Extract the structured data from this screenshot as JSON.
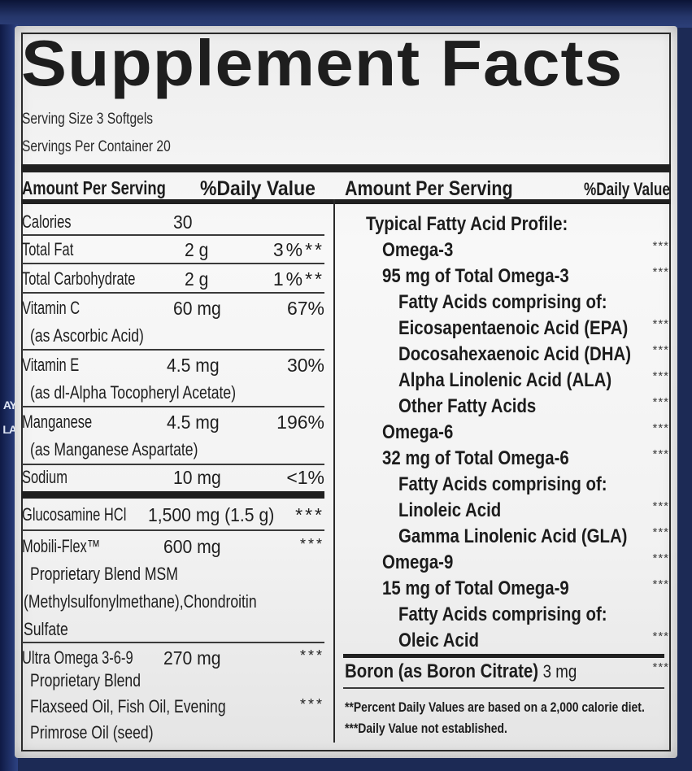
{
  "title": "Supplement Facts",
  "serving": {
    "size": "Serving Size 3 Softgels",
    "per_container": "Servings Per Container 20"
  },
  "left_header": {
    "amount": "Amount Per Serving",
    "dv": "%Daily Value"
  },
  "right_header": {
    "amount": "Amount Per Serving",
    "dv": "%Daily Value"
  },
  "left_rows": [
    {
      "name": "Calories",
      "amount": "30",
      "dv": ""
    },
    {
      "name": "Total Fat",
      "amount": "2 g",
      "dv": "3%**"
    },
    {
      "name": "Total Carbohydrate",
      "amount": "2 g",
      "dv": "1%**"
    },
    {
      "name": "Vitamin C",
      "amount": "60 mg",
      "dv": "67%",
      "sub": "(as Ascorbic Acid)"
    },
    {
      "name": "Vitamin E",
      "amount": "4.5 mg",
      "dv": "30%",
      "sub": "(as dl-Alpha Tocopheryl Acetate)"
    },
    {
      "name": "Manganese",
      "amount": "4.5 mg",
      "dv": "196%",
      "sub": "(as Manganese Aspartate)"
    },
    {
      "name": "Sodium",
      "amount": "10 mg",
      "dv": "<1%"
    }
  ],
  "blend_rows": {
    "glucosamine": {
      "name": "Glucosamine HCl",
      "amount": "1,500 mg (1.5 g)",
      "dv": "***"
    },
    "mobiliflex": {
      "name": "Mobili-Flex™",
      "amount": "600 mg",
      "dv": "***",
      "lines": [
        "Proprietary Blend MSM",
        "(Methylsulfonylmethane),Chondroitin",
        "Sulfate"
      ]
    },
    "ultra_omega": {
      "name": "Ultra Omega 3-6-9",
      "amount": "270 mg",
      "dv": "***",
      "line1": "Proprietary Blend",
      "line2": "Flaxseed Oil, Fish Oil, Evening",
      "line2_dv": "***",
      "line3": "Primrose Oil (seed)"
    }
  },
  "right_rows": [
    {
      "text": "Typical Fatty Acid Profile:",
      "dv": ""
    },
    {
      "text": "Omega-3",
      "dv": "***"
    },
    {
      "text": "95 mg of Total Omega-3",
      "dv": "***"
    },
    {
      "text": "Fatty Acids comprising of:",
      "dv": ""
    },
    {
      "text": "Eicosapentaenoic Acid (EPA)",
      "dv": "***"
    },
    {
      "text": "Docosahexaenoic Acid (DHA)",
      "dv": "***"
    },
    {
      "text": "Alpha Linolenic Acid (ALA)",
      "dv": "***"
    },
    {
      "text": "Other Fatty Acids",
      "dv": "***"
    },
    {
      "text": "Omega-6",
      "dv": "***"
    },
    {
      "text": "32 mg of Total Omega-6",
      "dv": "***"
    },
    {
      "text": "Fatty Acids comprising of:",
      "dv": ""
    },
    {
      "text": "Linoleic Acid",
      "dv": "***"
    },
    {
      "text": "Gamma Linolenic Acid (GLA)",
      "dv": "***"
    },
    {
      "text": "Omega-9",
      "dv": "***"
    },
    {
      "text": "15 mg of Total Omega-9",
      "dv": "***"
    },
    {
      "text": "Fatty Acids comprising of:",
      "dv": ""
    },
    {
      "text": "Oleic Acid",
      "dv": "***"
    }
  ],
  "boron": {
    "text": "Boron (as Boron Citrate)",
    "amount": "3 mg",
    "dv": "***"
  },
  "footnotes": {
    "double": "**Percent Daily Values are based on a 2,000 calorie diet.",
    "triple": "***Daily Value not established."
  },
  "bottle_fragments": [
    "AY",
    "LA"
  ],
  "colors": {
    "label_bg": "#f2f2f2",
    "ink": "#1e1e1e",
    "bottle": "#1c2a55"
  }
}
